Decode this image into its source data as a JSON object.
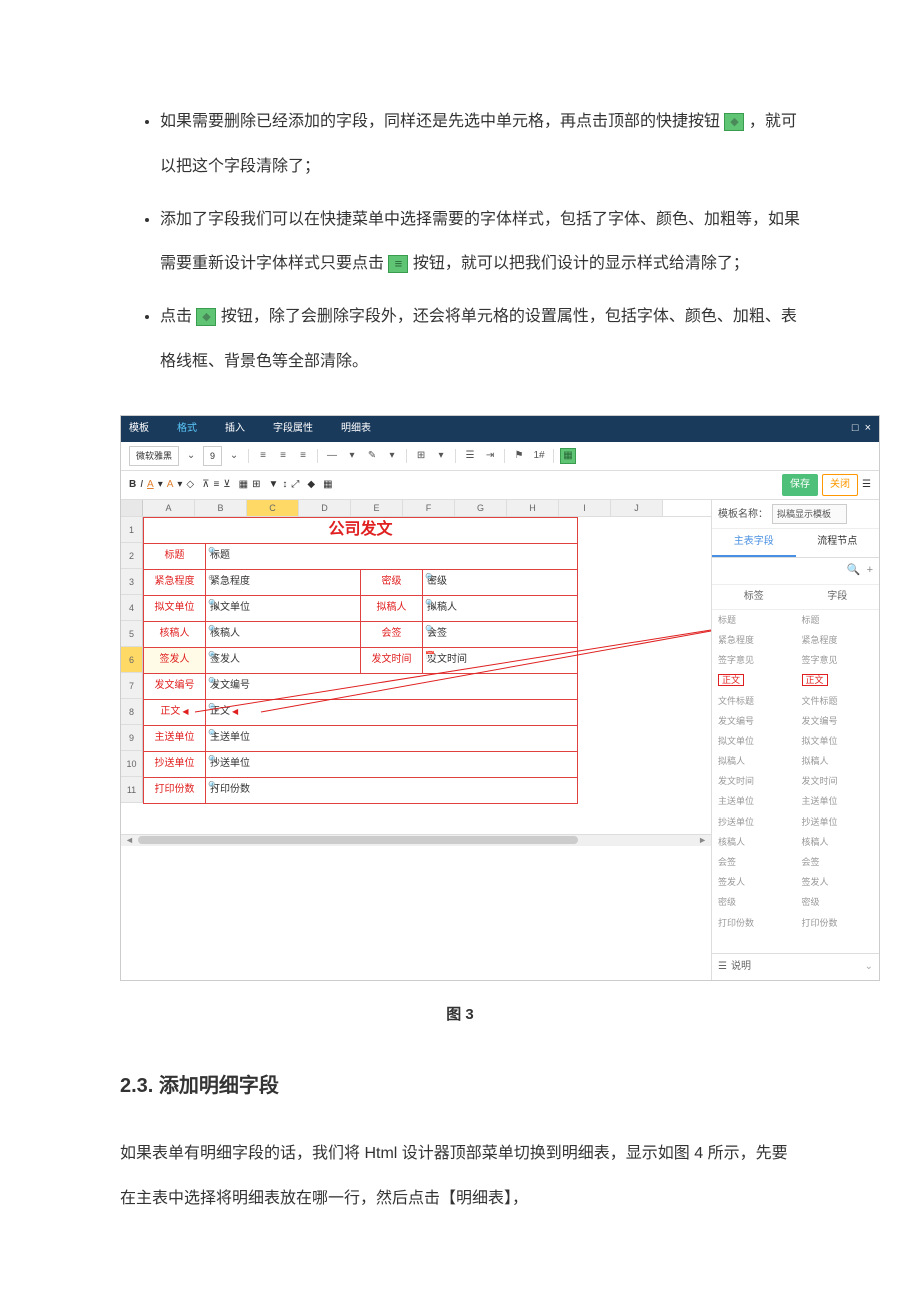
{
  "bullets": {
    "b1_part1": "如果需要删除已经添加的字段，同样还是先选中单元格，再点击顶部的快捷按钮",
    "b1_part2": "，就可以把这个字段清除了；",
    "b2_part1": "添加了字段我们可以在快捷菜单中选择需要的字体样式，包括了字体、颜色、加粗等，如果需要重新设计字体样式只要点击",
    "b2_part2": "按钮，就可以把我们设计的显示样式给清除了；",
    "b3_part1": "点击",
    "b3_part2": "按钮，除了会删除字段外，还会将单元格的设置属性，包括字体、颜色、加粗、表格线框、背景色等全部清除。"
  },
  "menubar": {
    "items": [
      "模板",
      "格式",
      "插入",
      "字段属性",
      "明细表"
    ],
    "active_index": 1
  },
  "toolbar": {
    "font_family": "微软雅黑",
    "font_size": "9",
    "save": "保存",
    "close": "关闭"
  },
  "columns": [
    "A",
    "B",
    "C",
    "D",
    "E",
    "F",
    "G",
    "H",
    "I",
    "J"
  ],
  "rows": [
    "1",
    "2",
    "3",
    "4",
    "5",
    "6",
    "7",
    "8",
    "9",
    "10",
    "11"
  ],
  "highlighted_row": "6",
  "grid": {
    "title": "公司发文",
    "r2": {
      "label": "标题",
      "value": "标题"
    },
    "r3": {
      "l1": "紧急程度",
      "v1": "紧急程度",
      "l2": "密级",
      "v2": "密级"
    },
    "r4": {
      "l1": "拟文单位",
      "v1": "拟文单位",
      "l2": "拟稿人",
      "v2": "拟稿人"
    },
    "r5": {
      "l1": "核稿人",
      "v1": "核稿人",
      "l2": "会签",
      "v2": "会签"
    },
    "r6": {
      "l1": "签发人",
      "v1": "签发人",
      "l2": "发文时间",
      "v2": "发文时间"
    },
    "r7": {
      "label": "发文编号",
      "value": "发文编号"
    },
    "r8": {
      "label": "正文",
      "value": "正文"
    },
    "r9": {
      "label": "主送单位",
      "value": "主送单位"
    },
    "r10": {
      "label": "抄送单位",
      "value": "抄送单位"
    },
    "r11": {
      "label": "打印份数",
      "value": "打印份数"
    }
  },
  "sidepanel": {
    "template_label": "模板名称：",
    "template_name": "拟稿显示模板",
    "tabs": [
      "主表字段",
      "流程节点"
    ],
    "active_tab": 0,
    "col_headers": [
      "标签",
      "字段"
    ],
    "fields": [
      {
        "l": "标题",
        "f": "标题"
      },
      {
        "l": "紧急程度",
        "f": "紧急程度"
      },
      {
        "l": "签字意见",
        "f": "签字意见"
      },
      {
        "l": "正文",
        "f": "正文",
        "hl": true
      },
      {
        "l": "文件标题",
        "f": "文件标题"
      },
      {
        "l": "发文编号",
        "f": "发文编号"
      },
      {
        "l": "拟文单位",
        "f": "拟文单位"
      },
      {
        "l": "拟稿人",
        "f": "拟稿人"
      },
      {
        "l": "发文时间",
        "f": "发文时间"
      },
      {
        "l": "主送单位",
        "f": "主送单位"
      },
      {
        "l": "抄送单位",
        "f": "抄送单位"
      },
      {
        "l": "核稿人",
        "f": "核稿人"
      },
      {
        "l": "会签",
        "f": "会签"
      },
      {
        "l": "签发人",
        "f": "签发人"
      },
      {
        "l": "密级",
        "f": "密级"
      },
      {
        "l": "打印份数",
        "f": "打印份数"
      }
    ],
    "bottom": "说明"
  },
  "figure_caption": "图 3",
  "section_heading": "2.3.  添加明细字段",
  "body_paragraph": "如果表单有明细字段的话，我们将 Html 设计器顶部菜单切换到明细表，显示如图 4 所示，先要在主表中选择将明细表放在哪一行，然后点击【明细表】，"
}
